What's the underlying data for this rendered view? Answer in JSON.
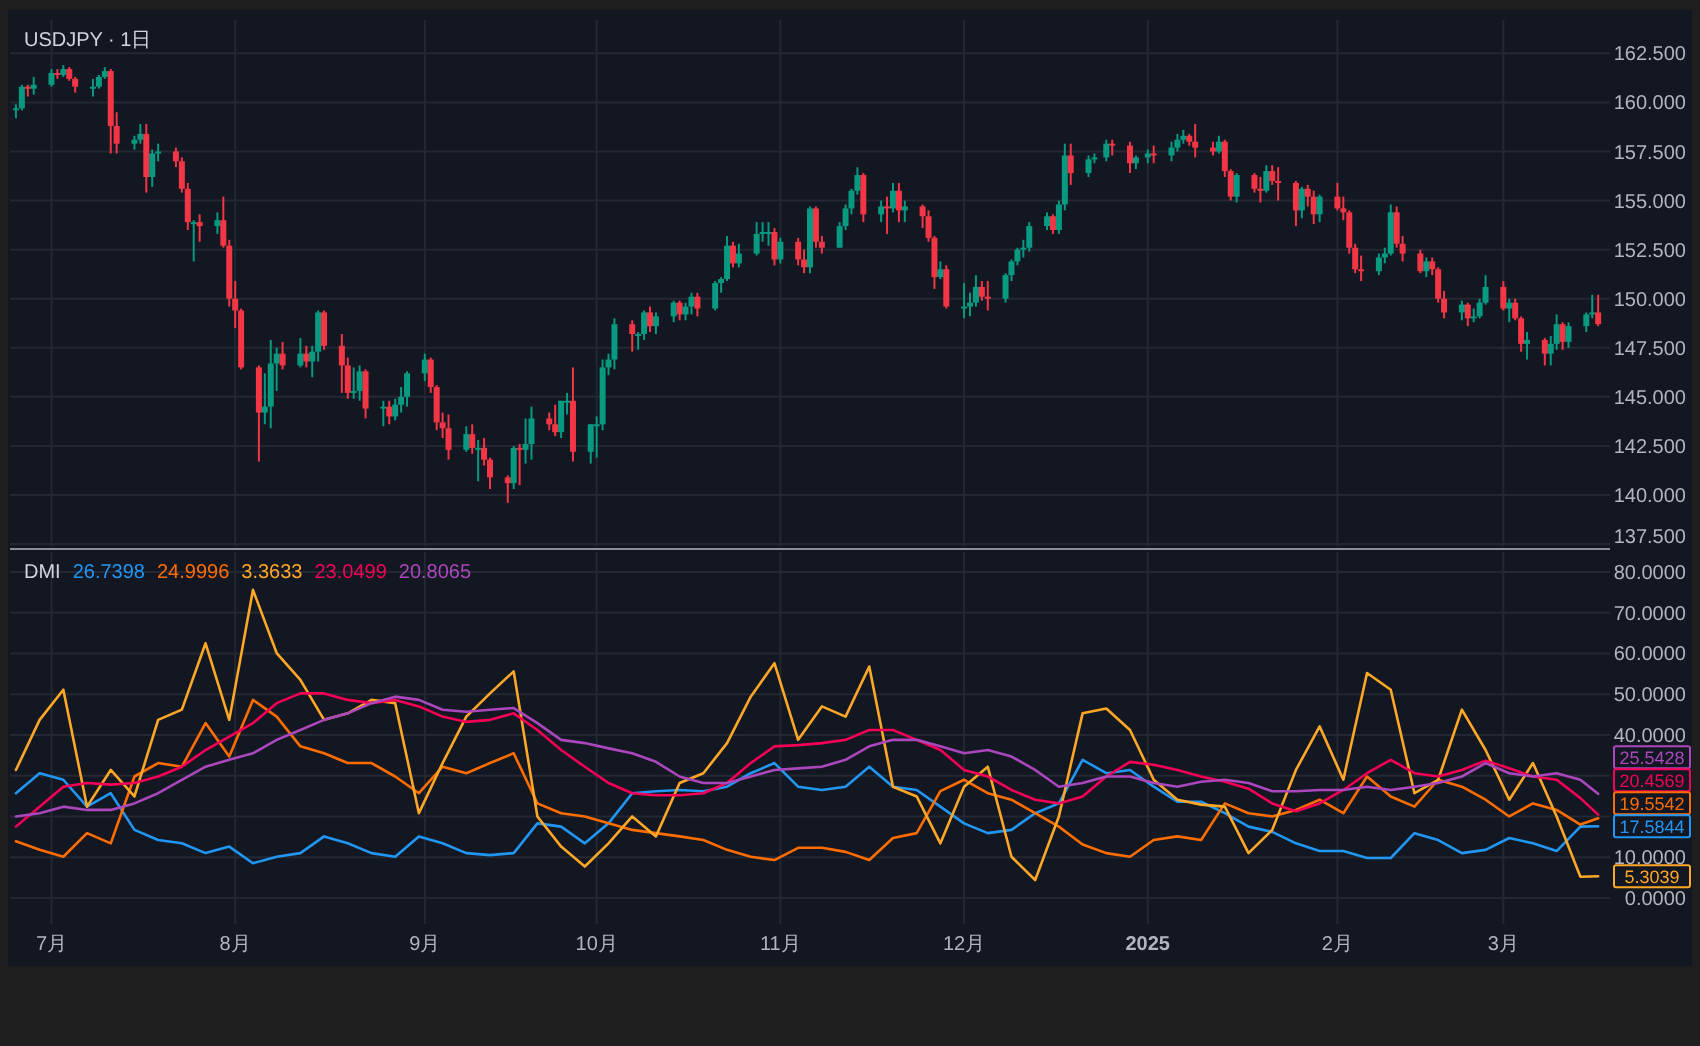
{
  "chart_data": [
    {
      "type": "candlestick",
      "title": "USDJPY · 1日",
      "x": [
        "2024-06-25",
        "2024-06-26",
        "2024-06-27",
        "2024-06-28",
        "2024-07-01",
        "2024-07-02",
        "2024-07-03",
        "2024-07-04",
        "2024-07-05",
        "2024-07-08",
        "2024-07-09",
        "2024-07-10",
        "2024-07-11",
        "2024-07-12",
        "2024-07-15",
        "2024-07-16",
        "2024-07-17",
        "2024-07-18",
        "2024-07-19",
        "2024-07-22",
        "2024-07-23",
        "2024-07-24",
        "2024-07-25",
        "2024-07-26",
        "2024-07-29",
        "2024-07-30",
        "2024-07-31",
        "2024-08-01",
        "2024-08-02",
        "2024-08-05",
        "2024-08-06",
        "2024-08-07",
        "2024-08-08",
        "2024-08-09",
        "2024-08-12",
        "2024-08-13",
        "2024-08-14",
        "2024-08-15",
        "2024-08-16",
        "2024-08-19",
        "2024-08-20",
        "2024-08-21",
        "2024-08-22",
        "2024-08-23",
        "2024-08-26",
        "2024-08-27",
        "2024-08-28",
        "2024-08-29",
        "2024-08-30",
        "2024-09-02",
        "2024-09-03",
        "2024-09-04",
        "2024-09-05",
        "2024-09-06",
        "2024-09-09",
        "2024-09-10",
        "2024-09-11",
        "2024-09-12",
        "2024-09-13",
        "2024-09-16",
        "2024-09-17",
        "2024-09-18",
        "2024-09-19",
        "2024-09-20",
        "2024-09-23",
        "2024-09-24",
        "2024-09-25",
        "2024-09-26",
        "2024-09-27",
        "2024-09-30",
        "2024-10-01",
        "2024-10-02",
        "2024-10-03",
        "2024-10-04",
        "2024-10-07",
        "2024-10-08",
        "2024-10-09",
        "2024-10-10",
        "2024-10-11",
        "2024-10-14",
        "2024-10-15",
        "2024-10-16",
        "2024-10-17",
        "2024-10-18",
        "2024-10-21",
        "2024-10-22",
        "2024-10-23",
        "2024-10-24",
        "2024-10-25",
        "2024-10-28",
        "2024-10-29",
        "2024-10-30",
        "2024-10-31",
        "2024-11-01",
        "2024-11-04",
        "2024-11-05",
        "2024-11-06",
        "2024-11-07",
        "2024-11-08",
        "2024-11-11",
        "2024-11-12",
        "2024-11-13",
        "2024-11-14",
        "2024-11-15",
        "2024-11-18",
        "2024-11-19",
        "2024-11-20",
        "2024-11-21",
        "2024-11-22",
        "2024-11-25",
        "2024-11-26",
        "2024-11-27",
        "2024-11-28",
        "2024-11-29",
        "2024-12-02",
        "2024-12-03",
        "2024-12-04",
        "2024-12-05",
        "2024-12-06",
        "2024-12-09",
        "2024-12-10",
        "2024-12-11",
        "2024-12-12",
        "2024-12-13",
        "2024-12-16",
        "2024-12-17",
        "2024-12-18",
        "2024-12-19",
        "2024-12-20",
        "2024-12-23",
        "2024-12-24",
        "2024-12-26",
        "2024-12-27",
        "2024-12-30",
        "2024-12-31",
        "2025-01-02",
        "2025-01-03",
        "2025-01-06",
        "2025-01-07",
        "2025-01-08",
        "2025-01-09",
        "2025-01-10",
        "2025-01-13",
        "2025-01-14",
        "2025-01-15",
        "2025-01-16",
        "2025-01-17",
        "2025-01-20",
        "2025-01-21",
        "2025-01-22",
        "2025-01-23",
        "2025-01-24",
        "2025-01-27",
        "2025-01-28",
        "2025-01-29",
        "2025-01-30",
        "2025-01-31",
        "2025-02-03",
        "2025-02-04",
        "2025-02-05",
        "2025-02-06",
        "2025-02-07",
        "2025-02-10",
        "2025-02-11",
        "2025-02-12",
        "2025-02-13",
        "2025-02-14",
        "2025-02-17",
        "2025-02-18",
        "2025-02-19",
        "2025-02-20",
        "2025-02-21",
        "2025-02-24",
        "2025-02-25",
        "2025-02-26",
        "2025-02-27",
        "2025-02-28",
        "2025-03-03",
        "2025-03-04",
        "2025-03-05",
        "2025-03-06",
        "2025-03-07",
        "2025-03-10",
        "2025-03-11",
        "2025-03-12",
        "2025-03-13",
        "2025-03-14",
        "2025-03-17",
        "2025-03-18",
        "2025-03-19"
      ],
      "ohlc": [
        [
          159.6,
          159.9,
          159.2,
          159.7
        ],
        [
          159.7,
          160.9,
          159.6,
          160.8
        ],
        [
          160.8,
          160.9,
          160.3,
          160.7
        ],
        [
          160.7,
          161.3,
          160.4,
          160.9
        ],
        [
          160.9,
          161.7,
          160.8,
          161.5
        ],
        [
          161.5,
          161.7,
          161.2,
          161.4
        ],
        [
          161.4,
          161.9,
          161.3,
          161.7
        ],
        [
          161.7,
          161.8,
          161.1,
          161.2
        ],
        [
          161.2,
          161.3,
          160.5,
          160.8
        ],
        [
          160.8,
          161.2,
          160.3,
          160.8
        ],
        [
          160.8,
          161.4,
          160.7,
          161.3
        ],
        [
          161.3,
          161.8,
          161.2,
          161.6
        ],
        [
          161.6,
          161.7,
          157.4,
          158.8
        ],
        [
          158.8,
          159.5,
          157.4,
          157.9
        ],
        [
          157.9,
          158.3,
          157.6,
          158.1
        ],
        [
          158.1,
          158.9,
          157.9,
          158.4
        ],
        [
          158.4,
          158.9,
          155.4,
          156.2
        ],
        [
          156.2,
          157.6,
          155.7,
          157.4
        ],
        [
          157.4,
          157.9,
          157.0,
          157.5
        ],
        [
          157.5,
          157.7,
          156.7,
          157.0
        ],
        [
          157.0,
          157.2,
          155.4,
          155.6
        ],
        [
          155.6,
          155.9,
          153.5,
          153.9
        ],
        [
          153.9,
          154.0,
          151.9,
          153.9
        ],
        [
          153.9,
          154.3,
          152.9,
          153.7
        ],
        [
          153.7,
          154.4,
          153.3,
          154.0
        ],
        [
          154.0,
          155.2,
          152.6,
          152.7
        ],
        [
          152.7,
          153.0,
          149.6,
          150.0
        ],
        [
          150.0,
          150.9,
          148.5,
          149.4
        ],
        [
          149.4,
          149.5,
          146.4,
          146.5
        ],
        [
          146.5,
          146.6,
          141.7,
          144.2
        ],
        [
          144.2,
          146.2,
          143.6,
          144.5
        ],
        [
          144.5,
          147.9,
          143.4,
          146.7
        ],
        [
          146.7,
          147.5,
          145.3,
          147.2
        ],
        [
          147.2,
          147.8,
          146.4,
          146.6
        ],
        [
          146.6,
          148.0,
          146.5,
          147.2
        ],
        [
          147.2,
          147.6,
          146.5,
          146.8
        ],
        [
          146.8,
          147.6,
          146.0,
          147.3
        ],
        [
          147.3,
          149.4,
          146.8,
          149.3
        ],
        [
          149.3,
          149.4,
          147.4,
          147.6
        ],
        [
          147.6,
          148.2,
          145.2,
          146.6
        ],
        [
          146.6,
          147.0,
          144.9,
          145.2
        ],
        [
          145.2,
          146.5,
          144.9,
          145.3
        ],
        [
          145.3,
          146.6,
          144.8,
          146.3
        ],
        [
          146.3,
          146.4,
          143.9,
          144.4
        ],
        [
          144.4,
          144.8,
          143.5,
          144.5
        ],
        [
          144.5,
          144.8,
          143.6,
          144.0
        ],
        [
          144.0,
          144.9,
          143.8,
          144.6
        ],
        [
          144.6,
          145.5,
          144.2,
          145.0
        ],
        [
          145.0,
          146.3,
          144.5,
          146.2
        ],
        [
          146.2,
          147.2,
          145.8,
          146.9
        ],
        [
          146.9,
          147.0,
          145.2,
          145.5
        ],
        [
          145.5,
          145.6,
          143.3,
          143.7
        ],
        [
          143.7,
          144.2,
          142.9,
          143.4
        ],
        [
          143.4,
          144.1,
          141.8,
          142.3
        ],
        [
          142.3,
          143.5,
          142.2,
          143.1
        ],
        [
          143.1,
          143.6,
          142.1,
          142.4
        ],
        [
          142.4,
          142.8,
          140.7,
          142.4
        ],
        [
          142.4,
          142.9,
          141.5,
          141.8
        ],
        [
          141.8,
          141.9,
          140.3,
          140.9
        ],
        [
          140.9,
          141.0,
          139.6,
          140.6
        ],
        [
          140.6,
          142.5,
          140.3,
          142.4
        ],
        [
          142.4,
          142.6,
          140.5,
          142.3
        ],
        [
          142.3,
          143.9,
          141.6,
          142.6
        ],
        [
          142.6,
          144.5,
          141.8,
          143.9
        ],
        [
          143.9,
          144.2,
          143.3,
          143.6
        ],
        [
          143.6,
          144.6,
          143.0,
          143.2
        ],
        [
          143.2,
          144.8,
          142.9,
          144.8
        ],
        [
          144.8,
          145.2,
          144.1,
          144.8
        ],
        [
          144.8,
          146.5,
          141.7,
          142.2
        ],
        [
          142.2,
          143.6,
          141.6,
          143.6
        ],
        [
          143.6,
          144.0,
          141.9,
          143.6
        ],
        [
          143.6,
          146.9,
          143.3,
          146.5
        ],
        [
          146.5,
          147.2,
          146.1,
          146.9
        ],
        [
          146.9,
          149.0,
          146.4,
          148.7
        ],
        [
          148.7,
          148.9,
          147.3,
          148.2
        ],
        [
          148.2,
          148.3,
          147.4,
          148.2
        ],
        [
          148.2,
          149.4,
          147.9,
          149.3
        ],
        [
          149.3,
          149.6,
          148.3,
          148.6
        ],
        [
          148.6,
          149.3,
          148.2,
          149.1
        ],
        [
          149.1,
          149.9,
          148.8,
          149.8
        ],
        [
          149.8,
          149.9,
          148.9,
          149.2
        ],
        [
          149.2,
          149.8,
          148.9,
          149.6
        ],
        [
          149.6,
          150.3,
          149.2,
          150.1
        ],
        [
          150.1,
          150.3,
          149.1,
          149.5
        ],
        [
          149.5,
          150.9,
          149.4,
          150.8
        ],
        [
          150.8,
          151.1,
          150.3,
          151.0
        ],
        [
          151.0,
          153.2,
          150.9,
          152.7
        ],
        [
          152.7,
          152.9,
          151.6,
          151.8
        ],
        [
          151.8,
          152.8,
          151.6,
          152.3
        ],
        [
          152.3,
          153.9,
          152.2,
          153.3
        ],
        [
          153.3,
          153.9,
          152.9,
          153.4
        ],
        [
          153.4,
          153.9,
          152.7,
          153.4
        ],
        [
          153.4,
          153.6,
          151.7,
          152.0
        ],
        [
          152.0,
          153.1,
          151.8,
          152.9
        ],
        [
          152.9,
          153.1,
          151.7,
          152.0
        ],
        [
          152.0,
          152.5,
          151.3,
          151.6
        ],
        [
          151.6,
          154.7,
          151.3,
          154.6
        ],
        [
          154.6,
          154.7,
          152.6,
          152.9
        ],
        [
          152.9,
          153.2,
          152.3,
          152.6
        ],
        [
          152.6,
          153.9,
          152.6,
          153.7
        ],
        [
          153.7,
          154.8,
          153.5,
          154.6
        ],
        [
          154.6,
          155.6,
          154.3,
          155.5
        ],
        [
          155.5,
          156.7,
          155.3,
          156.3
        ],
        [
          156.3,
          156.4,
          153.9,
          154.3
        ],
        [
          154.3,
          155.0,
          153.9,
          154.7
        ],
        [
          154.7,
          155.2,
          153.3,
          154.6
        ],
        [
          154.6,
          155.9,
          154.4,
          155.5
        ],
        [
          155.5,
          155.9,
          153.9,
          154.5
        ],
        [
          154.5,
          155.0,
          153.9,
          154.7
        ],
        [
          154.7,
          154.8,
          153.6,
          154.2
        ],
        [
          154.2,
          154.5,
          152.9,
          153.1
        ],
        [
          153.1,
          153.2,
          150.5,
          151.1
        ],
        [
          151.1,
          151.9,
          151.0,
          151.5
        ],
        [
          151.5,
          151.7,
          149.5,
          149.6
        ],
        [
          149.6,
          150.8,
          149.0,
          149.6
        ],
        [
          149.6,
          150.3,
          149.1,
          149.8
        ],
        [
          149.8,
          151.2,
          149.6,
          150.6
        ],
        [
          150.6,
          150.9,
          149.9,
          150.1
        ],
        [
          150.1,
          150.9,
          149.4,
          150.0
        ],
        [
          150.0,
          151.3,
          149.8,
          151.2
        ],
        [
          151.2,
          152.0,
          150.9,
          151.9
        ],
        [
          151.9,
          152.6,
          151.7,
          152.5
        ],
        [
          152.5,
          153.0,
          152.1,
          152.6
        ],
        [
          152.6,
          153.9,
          152.4,
          153.7
        ],
        [
          153.7,
          154.4,
          153.5,
          154.2
        ],
        [
          154.2,
          154.3,
          153.3,
          153.5
        ],
        [
          153.5,
          155.0,
          153.3,
          154.8
        ],
        [
          154.8,
          157.9,
          154.5,
          157.3
        ],
        [
          157.3,
          157.9,
          155.8,
          156.4
        ],
        [
          156.4,
          157.3,
          156.2,
          157.1
        ],
        [
          157.1,
          157.4,
          156.9,
          157.2
        ],
        [
          157.2,
          158.1,
          157.0,
          157.9
        ],
        [
          157.9,
          158.1,
          157.3,
          157.8
        ],
        [
          157.8,
          158.0,
          156.4,
          156.9
        ],
        [
          156.9,
          157.3,
          156.6,
          157.2
        ],
        [
          157.2,
          157.6,
          156.9,
          157.4
        ],
        [
          157.4,
          157.8,
          156.9,
          157.3
        ],
        [
          157.3,
          158.0,
          157.0,
          157.7
        ],
        [
          157.7,
          158.4,
          157.5,
          158.1
        ],
        [
          158.1,
          158.6,
          157.9,
          158.3
        ],
        [
          158.3,
          158.4,
          157.8,
          158.0
        ],
        [
          158.0,
          158.9,
          157.2,
          157.7
        ],
        [
          157.7,
          158.0,
          157.3,
          157.5
        ],
        [
          157.5,
          158.3,
          157.4,
          158.0
        ],
        [
          158.0,
          158.1,
          156.2,
          156.5
        ],
        [
          156.5,
          156.6,
          155.0,
          155.2
        ],
        [
          155.2,
          156.4,
          154.9,
          156.3
        ],
        [
          156.3,
          156.4,
          155.4,
          155.6
        ],
        [
          155.6,
          156.2,
          154.9,
          155.5
        ],
        [
          155.5,
          156.8,
          155.4,
          156.5
        ],
        [
          156.5,
          156.8,
          155.8,
          156.0
        ],
        [
          156.0,
          156.7,
          155.0,
          155.9
        ],
        [
          155.9,
          156.0,
          153.7,
          154.5
        ],
        [
          154.5,
          155.7,
          154.1,
          155.6
        ],
        [
          155.6,
          155.8,
          154.7,
          155.2
        ],
        [
          155.2,
          155.5,
          153.8,
          154.3
        ],
        [
          154.3,
          155.3,
          153.9,
          155.2
        ],
        [
          155.2,
          155.9,
          154.5,
          154.6
        ],
        [
          154.6,
          155.2,
          154.0,
          154.4
        ],
        [
          154.4,
          154.5,
          152.3,
          152.6
        ],
        [
          152.6,
          152.8,
          151.3,
          151.5
        ],
        [
          151.5,
          152.2,
          150.9,
          151.4
        ],
        [
          151.4,
          152.3,
          151.2,
          152.1
        ],
        [
          152.1,
          152.6,
          151.8,
          152.3
        ],
        [
          152.3,
          154.8,
          152.2,
          154.4
        ],
        [
          154.4,
          154.7,
          152.6,
          152.8
        ],
        [
          152.8,
          153.2,
          151.9,
          152.3
        ],
        [
          152.3,
          152.5,
          151.3,
          151.4
        ],
        [
          151.4,
          152.1,
          151.1,
          151.9
        ],
        [
          151.9,
          152.1,
          151.2,
          151.5
        ],
        [
          151.5,
          151.6,
          149.8,
          150.0
        ],
        [
          150.0,
          150.4,
          149.0,
          149.3
        ],
        [
          149.3,
          149.9,
          148.9,
          149.7
        ],
        [
          149.7,
          149.8,
          148.6,
          149.0
        ],
        [
          149.0,
          149.5,
          148.8,
          149.1
        ],
        [
          149.1,
          150.0,
          149.0,
          149.8
        ],
        [
          149.8,
          151.2,
          149.7,
          150.6
        ],
        [
          150.6,
          150.9,
          149.4,
          149.5
        ],
        [
          149.5,
          150.0,
          148.8,
          149.8
        ],
        [
          149.8,
          150.0,
          148.9,
          149.0
        ],
        [
          149.0,
          149.1,
          147.3,
          147.7
        ],
        [
          147.7,
          148.3,
          146.9,
          147.9
        ],
        [
          147.9,
          148.0,
          146.6,
          147.2
        ],
        [
          147.2,
          148.1,
          146.6,
          147.7
        ],
        [
          147.7,
          149.2,
          147.4,
          148.7
        ],
        [
          148.7,
          148.8,
          147.4,
          147.8
        ],
        [
          147.8,
          148.8,
          147.5,
          148.6
        ],
        [
          148.6,
          149.3,
          148.3,
          149.2
        ],
        [
          149.2,
          150.2,
          149.0,
          149.3
        ],
        [
          149.3,
          150.2,
          148.6,
          148.7
        ]
      ],
      "xlim": [
        "2024-06-24",
        "2025-03-21"
      ],
      "xticks": [
        {
          "value": "2024-07-01",
          "label": null
        },
        {
          "value": "2024-08-01",
          "label": null
        },
        {
          "value": "2024-09-02",
          "label": null
        },
        {
          "value": "2024-10-01",
          "label": null
        },
        {
          "value": "2024-11-01",
          "label": null
        },
        {
          "value": "2024-12-02",
          "label": null
        },
        {
          "value": "2025-01-02",
          "label": null
        },
        {
          "value": "2025-02-03",
          "label": null
        },
        {
          "value": "2025-03-03",
          "label": null
        }
      ],
      "ylim": [
        137.4,
        164.2
      ],
      "yticks": [
        {
          "value": 137.5,
          "label": "137.500"
        },
        {
          "value": 140,
          "label": "140.000"
        },
        {
          "value": 142.5,
          "label": "142.500"
        },
        {
          "value": 145,
          "label": "145.000"
        },
        {
          "value": 147.5,
          "label": "147.500"
        },
        {
          "value": 150,
          "label": "150.000"
        },
        {
          "value": 152.5,
          "label": "152.500"
        },
        {
          "value": 155,
          "label": "155.000"
        },
        {
          "value": 157.5,
          "label": "157.500"
        },
        {
          "value": 160,
          "label": "160.000"
        },
        {
          "value": 162.5,
          "label": "162.500"
        }
      ],
      "grid": true,
      "tick_labels": "y"
    },
    {
      "type": "line",
      "title": "DMI",
      "annotations": [
        "26.7398",
        "24.9996",
        "3.3633",
        "23.0499",
        "20.8065"
      ],
      "x": [
        "2024-06-25",
        "2024-06-29",
        "2024-07-03",
        "2024-07-07",
        "2024-07-11",
        "2024-07-15",
        "2024-07-19",
        "2024-07-23",
        "2024-07-27",
        "2024-07-31",
        "2024-08-04",
        "2024-08-08",
        "2024-08-12",
        "2024-08-16",
        "2024-08-20",
        "2024-08-24",
        "2024-08-28",
        "2024-09-01",
        "2024-09-05",
        "2024-09-09",
        "2024-09-13",
        "2024-09-17",
        "2024-09-21",
        "2024-09-25",
        "2024-09-29",
        "2024-10-03",
        "2024-10-07",
        "2024-10-11",
        "2024-10-15",
        "2024-10-19",
        "2024-10-23",
        "2024-10-27",
        "2024-10-31",
        "2024-11-04",
        "2024-11-08",
        "2024-11-12",
        "2024-11-16",
        "2024-11-20",
        "2024-11-24",
        "2024-11-28",
        "2024-12-02",
        "2024-12-06",
        "2024-12-10",
        "2024-12-14",
        "2024-12-18",
        "2024-12-22",
        "2024-12-26",
        "2024-12-30",
        "2025-01-03",
        "2025-01-07",
        "2025-01-11",
        "2025-01-15",
        "2025-01-19",
        "2025-01-23",
        "2025-01-27",
        "2025-01-31",
        "2025-02-04",
        "2025-02-08",
        "2025-02-12",
        "2025-02-16",
        "2025-02-20",
        "2025-02-24",
        "2025-02-28",
        "2025-03-04",
        "2025-03-08",
        "2025-03-12",
        "2025-03-16",
        "2025-03-19"
      ],
      "series": [
        {
          "color": "#2196f3",
          "values": [
            25.7,
            30.6,
            29.0,
            22.4,
            25.7,
            16.7,
            14.2,
            13.4,
            11.0,
            12.6,
            8.5,
            10.1,
            11.0,
            15.1,
            13.4,
            11.0,
            10.1,
            15.1,
            13.4,
            11.0,
            10.5,
            11.0,
            18.3,
            17.5,
            13.4,
            18.3,
            25.7,
            26.2,
            26.5,
            26.2,
            27.3,
            30.6,
            33.1,
            27.3,
            26.5,
            27.3,
            32.2,
            27.3,
            26.5,
            22.4,
            18.3,
            15.9,
            16.7,
            20.8,
            23.2,
            33.9,
            30.6,
            31.4,
            27.3,
            23.6,
            23.6,
            20.8,
            17.5,
            16.2,
            13.4,
            11.5,
            11.5,
            9.8,
            9.8,
            15.9,
            14.2,
            11.0,
            11.8,
            14.7,
            13.4,
            11.5,
            17.5,
            17.5844
          ],
          "value_labels": [
            null,
            null,
            null,
            null,
            null,
            null,
            null,
            null,
            null,
            null,
            null,
            null,
            null,
            null,
            null,
            null,
            null,
            null,
            null,
            null,
            null,
            null,
            null,
            null,
            null,
            null,
            null,
            null,
            null,
            null,
            null,
            null,
            null,
            null,
            null,
            null,
            null,
            null,
            null,
            null,
            null,
            null,
            null,
            null,
            null,
            null,
            null,
            null,
            null,
            null,
            null,
            null,
            null,
            null,
            null,
            null,
            null,
            null,
            null,
            null,
            null,
            null,
            null,
            null,
            null,
            null,
            null,
            "17.5844"
          ]
        },
        {
          "color": "#ff6d00",
          "values": [
            13.9,
            11.8,
            10.1,
            15.9,
            13.4,
            29.8,
            33.1,
            32.2,
            42.9,
            34.7,
            48.6,
            44.5,
            37.2,
            35.5,
            33.1,
            33.1,
            29.8,
            25.7,
            32.2,
            30.6,
            33.1,
            35.5,
            23.2,
            20.8,
            20.0,
            18.3,
            16.7,
            15.9,
            15.1,
            14.2,
            11.8,
            10.1,
            9.3,
            12.3,
            12.3,
            11.3,
            9.3,
            14.7,
            15.9,
            26.2,
            29.0,
            25.7,
            24.1,
            20.8,
            17.5,
            13.1,
            11.0,
            10.1,
            14.2,
            15.1,
            14.2,
            23.2,
            20.8,
            20.0,
            21.6,
            24.1,
            20.8,
            29.8,
            24.9,
            22.4,
            29.0,
            27.3,
            24.1,
            20.0,
            23.2,
            21.6,
            18.0,
            19.5542
          ],
          "value_labels": [
            null,
            null,
            null,
            null,
            null,
            null,
            null,
            null,
            null,
            null,
            null,
            null,
            null,
            null,
            null,
            null,
            null,
            null,
            null,
            null,
            null,
            null,
            null,
            null,
            null,
            null,
            null,
            null,
            null,
            null,
            null,
            null,
            null,
            null,
            null,
            null,
            null,
            null,
            null,
            null,
            null,
            null,
            null,
            null,
            null,
            null,
            null,
            null,
            null,
            null,
            null,
            null,
            null,
            null,
            null,
            null,
            null,
            null,
            null,
            null,
            null,
            null,
            null,
            null,
            null,
            null,
            null,
            "19.5542"
          ]
        },
        {
          "color": "#ffa726",
          "values": [
            31.4,
            43.7,
            51.1,
            22.4,
            31.4,
            24.9,
            43.7,
            46.2,
            62.5,
            43.7,
            75.6,
            60.1,
            53.5,
            43.7,
            45.3,
            48.6,
            47.8,
            20.8,
            33.1,
            44.5,
            50.2,
            55.6,
            20.0,
            12.6,
            7.7,
            13.4,
            20.0,
            15.1,
            28.2,
            30.6,
            38.0,
            49.4,
            57.6,
            38.8,
            47.0,
            44.5,
            56.8,
            27.3,
            24.9,
            13.4,
            27.3,
            32.2,
            10.1,
            4.4,
            20.0,
            45.3,
            46.5,
            41.2,
            29.0,
            24.1,
            22.9,
            22.4,
            11.0,
            16.7,
            31.4,
            42.1,
            29.0,
            55.2,
            51.1,
            25.7,
            29.0,
            46.2,
            36.3,
            24.1,
            33.1,
            20.0,
            5.2,
            5.3039
          ],
          "value_labels": [
            null,
            null,
            null,
            null,
            null,
            null,
            null,
            null,
            null,
            null,
            null,
            null,
            null,
            null,
            null,
            null,
            null,
            null,
            null,
            null,
            null,
            null,
            null,
            null,
            null,
            null,
            null,
            null,
            null,
            null,
            null,
            null,
            null,
            null,
            null,
            null,
            null,
            null,
            null,
            null,
            null,
            null,
            null,
            null,
            null,
            null,
            null,
            null,
            null,
            null,
            null,
            null,
            null,
            null,
            null,
            null,
            null,
            null,
            null,
            null,
            null,
            null,
            null,
            null,
            null,
            null,
            null,
            "5.3039"
          ]
        },
        {
          "color": "#f50057",
          "values": [
            17.5,
            22.4,
            27.3,
            28.2,
            27.8,
            28.2,
            29.8,
            32.2,
            36.3,
            39.6,
            42.9,
            47.8,
            50.2,
            50.2,
            48.6,
            47.8,
            48.6,
            47.0,
            44.5,
            43.2,
            43.7,
            45.3,
            41.2,
            36.3,
            32.2,
            28.2,
            25.7,
            25.2,
            25.2,
            25.7,
            28.2,
            33.1,
            37.2,
            37.5,
            38.0,
            38.8,
            41.2,
            41.2,
            38.8,
            36.3,
            31.4,
            29.8,
            26.5,
            24.1,
            23.2,
            24.9,
            29.8,
            33.4,
            32.7,
            31.4,
            29.8,
            28.5,
            26.8,
            23.2,
            21.3,
            23.2,
            26.5,
            30.6,
            33.9,
            30.6,
            29.8,
            31.4,
            33.7,
            31.8,
            29.8,
            29.0,
            24.5,
            20.4569
          ],
          "value_labels": [
            null,
            null,
            null,
            null,
            null,
            null,
            null,
            null,
            null,
            null,
            null,
            null,
            null,
            null,
            null,
            null,
            null,
            null,
            null,
            null,
            null,
            null,
            null,
            null,
            null,
            null,
            null,
            null,
            null,
            null,
            null,
            null,
            null,
            null,
            null,
            null,
            null,
            null,
            null,
            null,
            null,
            null,
            null,
            null,
            null,
            null,
            null,
            null,
            null,
            null,
            null,
            null,
            null,
            null,
            null,
            null,
            null,
            null,
            null,
            null,
            null,
            null,
            null,
            null,
            null,
            null,
            null,
            "20.4569"
          ]
        },
        {
          "color": "#ab47bc",
          "values": [
            20.0,
            20.8,
            22.4,
            21.6,
            21.6,
            23.2,
            25.7,
            29.0,
            32.2,
            33.9,
            35.5,
            38.8,
            41.2,
            43.7,
            45.3,
            47.8,
            49.4,
            48.6,
            46.2,
            45.7,
            46.2,
            46.6,
            42.9,
            38.8,
            38.0,
            36.7,
            35.5,
            33.4,
            29.8,
            28.2,
            28.2,
            29.8,
            31.4,
            31.8,
            32.2,
            33.9,
            37.2,
            38.8,
            38.8,
            37.2,
            35.5,
            36.3,
            34.7,
            31.4,
            27.3,
            28.2,
            29.8,
            29.8,
            28.2,
            27.3,
            28.5,
            29.0,
            28.2,
            26.2,
            26.2,
            26.5,
            26.5,
            27.3,
            26.5,
            27.3,
            28.2,
            29.8,
            33.1,
            30.6,
            29.8,
            30.6,
            29.0,
            25.5428
          ],
          "value_labels": [
            null,
            null,
            null,
            null,
            null,
            null,
            null,
            null,
            null,
            null,
            null,
            null,
            null,
            null,
            null,
            null,
            null,
            null,
            null,
            null,
            null,
            null,
            null,
            null,
            null,
            null,
            null,
            null,
            null,
            null,
            null,
            null,
            null,
            null,
            null,
            null,
            null,
            null,
            null,
            null,
            null,
            null,
            null,
            null,
            null,
            null,
            null,
            null,
            null,
            null,
            null,
            null,
            null,
            null,
            null,
            null,
            null,
            null,
            null,
            null,
            null,
            null,
            null,
            null,
            null,
            null,
            null,
            "25.5428"
          ]
        }
      ],
      "xlim": [
        "2024-06-24",
        "2025-03-21"
      ],
      "xticks": [
        {
          "value": "2024-07-01",
          "label": "7月"
        },
        {
          "value": "2024-08-01",
          "label": "8月"
        },
        {
          "value": "2024-09-02",
          "label": "9月"
        },
        {
          "value": "2024-10-01",
          "label": "10月"
        },
        {
          "value": "2024-11-01",
          "label": "11月"
        },
        {
          "value": "2024-12-02",
          "label": "12月"
        },
        {
          "value": "2025-01-02",
          "label": "2025"
        },
        {
          "value": "2025-02-03",
          "label": "2月"
        },
        {
          "value": "2025-03-03",
          "label": "3月"
        }
      ],
      "ylim": [
        -6.4,
        84.9
      ],
      "yticks": [
        {
          "value": 0,
          "label": "0.0000"
        },
        {
          "value": 10,
          "label": "10.0000"
        },
        {
          "value": 20,
          "label": null
        },
        {
          "value": 30,
          "label": null
        },
        {
          "value": 40,
          "label": "40.0000"
        },
        {
          "value": 50,
          "label": "50.0000"
        },
        {
          "value": 60,
          "label": "60.0000"
        },
        {
          "value": 70,
          "label": "70.0000"
        },
        {
          "value": 80,
          "label": "80.0000"
        }
      ],
      "grid": true
    }
  ]
}
